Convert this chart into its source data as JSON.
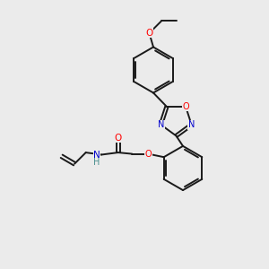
{
  "background_color": "#ebebeb",
  "bond_color": "#1a1a1a",
  "atom_colors": {
    "O": "#ff0000",
    "N": "#0000cd",
    "C": "#1a1a1a",
    "H": "#4a8f8f"
  },
  "figsize": [
    3.0,
    3.0
  ],
  "dpi": 100,
  "xlim": [
    0,
    10
  ],
  "ylim": [
    0,
    10
  ]
}
